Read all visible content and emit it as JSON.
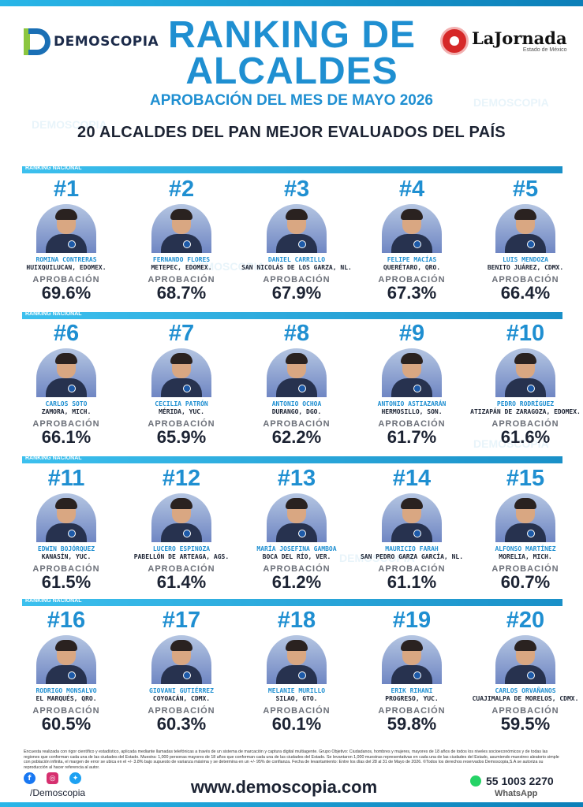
{
  "header": {
    "brand_left": "DEMOSCOPIA",
    "brand_right": "LaJornada",
    "brand_right_sub": "Estado de México",
    "title_line1": "RANKING DE",
    "title_line2": "ALCALDES",
    "subtitle": "APROBACIÓN DEL MES DE MAYO 2026",
    "subtitle2": "20 ALCALDES DEL PAN MEJOR EVALUADOS DEL PAÍS",
    "band_label": "RANKING NACIONAL",
    "approval_label": "APROBACIÓN"
  },
  "watermark": "DEMOSCOPIA",
  "mayors": [
    {
      "rank": "#1",
      "name": "ROMINA CONTRERAS",
      "place": "HUIXQUILUCAN, EDOMEX.",
      "approval": "69.6%"
    },
    {
      "rank": "#2",
      "name": "FERNANDO FLORES",
      "place": "METEPEC, EDOMEX.",
      "approval": "68.7%"
    },
    {
      "rank": "#3",
      "name": "DANIEL CARRILLO",
      "place": "SAN NICOLÁS DE LOS GARZA, NL.",
      "approval": "67.9%"
    },
    {
      "rank": "#4",
      "name": "FELIPE MACÍAS",
      "place": "QUERÉTARO, QRO.",
      "approval": "67.3%"
    },
    {
      "rank": "#5",
      "name": "LUIS MENDOZA",
      "place": "BENITO JUÁREZ, CDMX.",
      "approval": "66.4%"
    },
    {
      "rank": "#6",
      "name": "CARLOS SOTO",
      "place": "ZAMORA, MICH.",
      "approval": "66.1%"
    },
    {
      "rank": "#7",
      "name": "CECILIA PATRÓN",
      "place": "MÉRIDA, YUC.",
      "approval": "65.9%"
    },
    {
      "rank": "#8",
      "name": "ANTONIO OCHOA",
      "place": "DURANGO, DGO.",
      "approval": "62.2%"
    },
    {
      "rank": "#9",
      "name": "ANTONIO ASTIAZARÁN",
      "place": "HERMOSILLO, SON.",
      "approval": "61.7%"
    },
    {
      "rank": "#10",
      "name": "PEDRO RODRÍGUEZ",
      "place": "ATIZAPÁN DE ZARAGOZA, EDOMEX.",
      "approval": "61.6%"
    },
    {
      "rank": "#11",
      "name": "EDWIN BOJÓRQUEZ",
      "place": "KANASÍN, YUC.",
      "approval": "61.5%"
    },
    {
      "rank": "#12",
      "name": "LUCERO ESPINOZA",
      "place": "PABELLÓN DE ARTEAGA, AGS.",
      "approval": "61.4%"
    },
    {
      "rank": "#13",
      "name": "MARÍA JOSEFINA GAMBOA",
      "place": "BOCA DEL RÍO, VER.",
      "approval": "61.2%"
    },
    {
      "rank": "#14",
      "name": "MAURICIO FARAH",
      "place": "SAN PEDRO GARZA GARCÍA, NL.",
      "approval": "61.1%"
    },
    {
      "rank": "#15",
      "name": "ALFONSO MARTÍNEZ",
      "place": "MORELIA, MICH.",
      "approval": "60.7%"
    },
    {
      "rank": "#16",
      "name": "RODRIGO MONSALVO",
      "place": "EL MARQUÉS, QRO.",
      "approval": "60.5%"
    },
    {
      "rank": "#17",
      "name": "GIOVANI GUTIÉRREZ",
      "place": "COYOACÁN, CDMX.",
      "approval": "60.3%"
    },
    {
      "rank": "#18",
      "name": "MELANIE MURILLO",
      "place": "SILAO, GTO.",
      "approval": "60.1%"
    },
    {
      "rank": "#19",
      "name": "ERIK RIHANI",
      "place": "PROGRESO, YUC.",
      "approval": "59.8%"
    },
    {
      "rank": "#20",
      "name": "CARLOS ORVAÑANOS",
      "place": "CUAJIMALPA DE MORELOS, CDMX.",
      "approval": "59.5%"
    }
  ],
  "footer": {
    "disclaimer": "Encuesta realizada con rigor científico y estadístico, aplicada mediante llamadas telefónicas a través de un sistema de marcación y captura digital multiagente. Grupo Objetivo: Ciudadanos, hombres y mujeres, mayores de 18 años de todos los niveles socioeconómicos y de todas las regiones que conforman cada una de las ciudades del Estado. Muestra: 1,000 personas mayores de 18 años que conforman cada una de las ciudades del Estado. Se levantaron 1,000 muestras representativas en cada una de las ciudades del Estado, asumiendo muestreo aleatorio simple con población infinita, el margen de error se ubica en el +/- 3.8% bajo supuesto de varianza máxima y se determina en un +/- 95% de confianza. Fecha de levantamiento: Entre los días del 28 al 31 de Mayo de 2026. ©Todos los derechos reservados Demoscopia,S.A se autoriza su reproducción al hacer referencia al autor.",
    "handle": "/Demoscopia",
    "website": "www.demoscopia.com",
    "phone": "55 1003 2270",
    "whatsapp_label": "WhatsApp"
  }
}
